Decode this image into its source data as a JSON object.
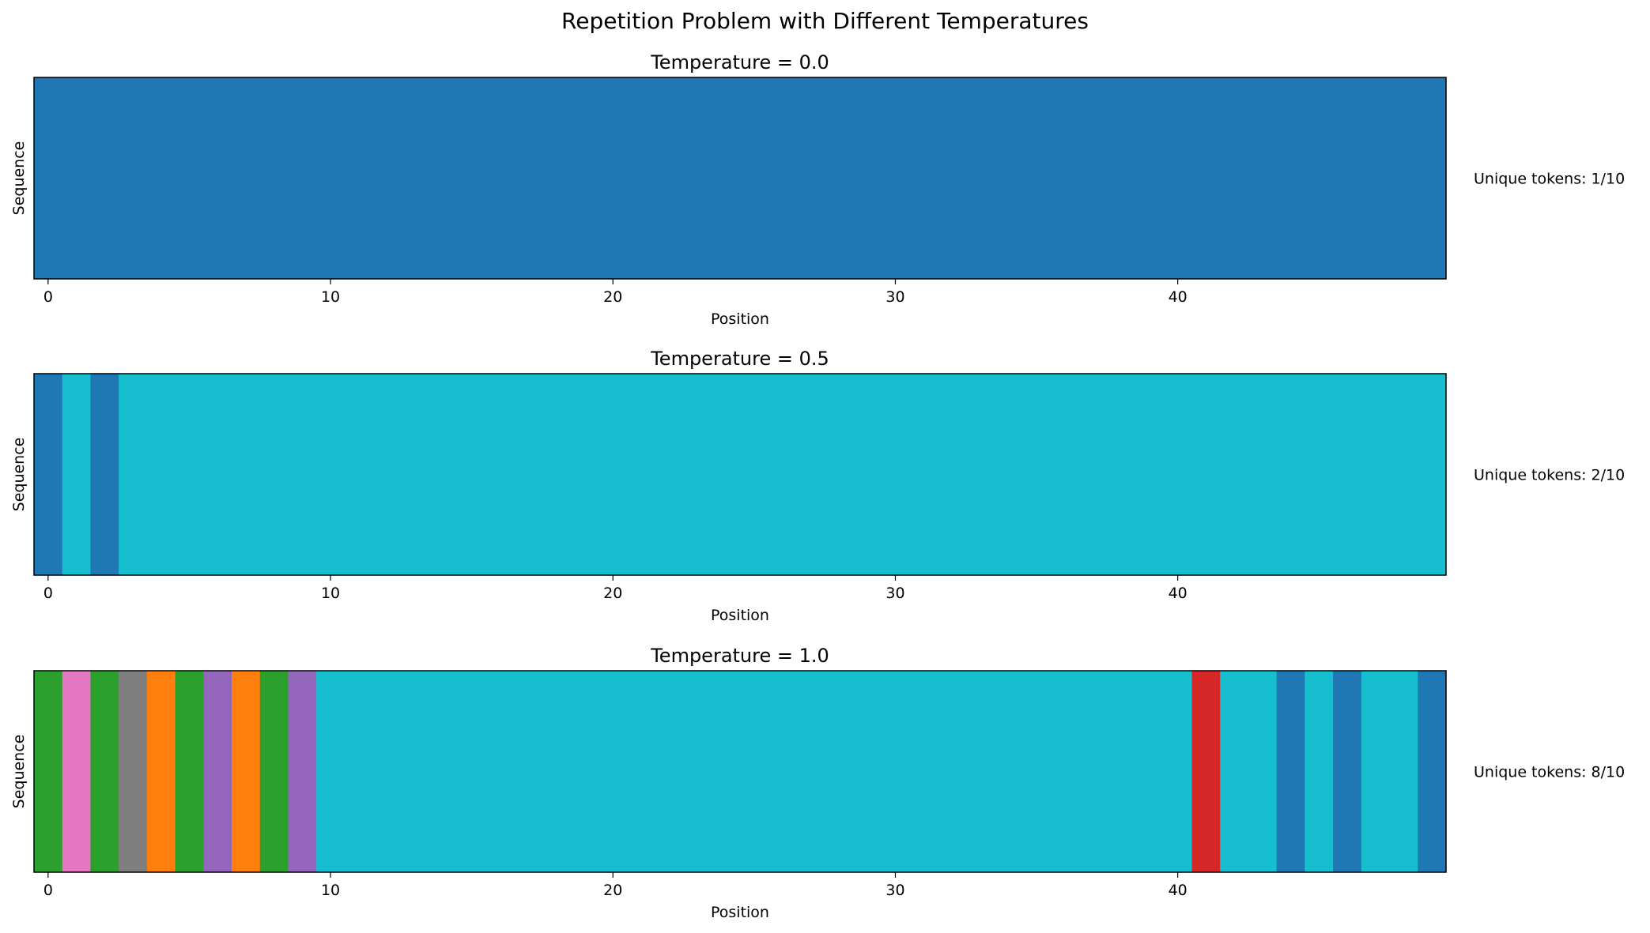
{
  "title": "Repetition Problem with Different Temperatures",
  "chart_data": [
    {
      "type": "heatmap",
      "title": "Temperature = 0.0",
      "xlabel": "Position",
      "ylabel": "Sequence",
      "xticks": [
        0,
        10,
        20,
        30,
        40
      ],
      "xlim": [
        -0.5,
        49.5
      ],
      "annotation": "Unique tokens: 1/10",
      "tokens": [
        0,
        0,
        0,
        0,
        0,
        0,
        0,
        0,
        0,
        0,
        0,
        0,
        0,
        0,
        0,
        0,
        0,
        0,
        0,
        0,
        0,
        0,
        0,
        0,
        0,
        0,
        0,
        0,
        0,
        0,
        0,
        0,
        0,
        0,
        0,
        0,
        0,
        0,
        0,
        0,
        0,
        0,
        0,
        0,
        0,
        0,
        0,
        0,
        0,
        0
      ]
    },
    {
      "type": "heatmap",
      "title": "Temperature = 0.5",
      "xlabel": "Position",
      "ylabel": "Sequence",
      "xticks": [
        0,
        10,
        20,
        30,
        40
      ],
      "xlim": [
        -0.5,
        49.5
      ],
      "annotation": "Unique tokens: 2/10",
      "tokens": [
        0,
        9,
        0,
        9,
        9,
        9,
        9,
        9,
        9,
        9,
        9,
        9,
        9,
        9,
        9,
        9,
        9,
        9,
        9,
        9,
        9,
        9,
        9,
        9,
        9,
        9,
        9,
        9,
        9,
        9,
        9,
        9,
        9,
        9,
        9,
        9,
        9,
        9,
        9,
        9,
        9,
        9,
        9,
        9,
        9,
        9,
        9,
        9,
        9,
        9
      ]
    },
    {
      "type": "heatmap",
      "title": "Temperature = 1.0",
      "xlabel": "Position",
      "ylabel": "Sequence",
      "xticks": [
        0,
        10,
        20,
        30,
        40
      ],
      "xlim": [
        -0.5,
        49.5
      ],
      "annotation": "Unique tokens: 8/10",
      "tokens": [
        2,
        6,
        2,
        7,
        1,
        2,
        4,
        1,
        2,
        4,
        9,
        9,
        9,
        9,
        9,
        9,
        9,
        9,
        9,
        9,
        9,
        9,
        9,
        9,
        9,
        9,
        9,
        9,
        9,
        9,
        9,
        9,
        9,
        9,
        9,
        9,
        9,
        9,
        9,
        9,
        9,
        3,
        9,
        9,
        0,
        9,
        0,
        9,
        9,
        0
      ]
    }
  ],
  "colormap": [
    "#1f77b4",
    "#ff7f0e",
    "#2ca02c",
    "#d62728",
    "#9467bd",
    "#8c564b",
    "#e377c2",
    "#7f7f7f",
    "#bcbd22",
    "#17becf"
  ]
}
